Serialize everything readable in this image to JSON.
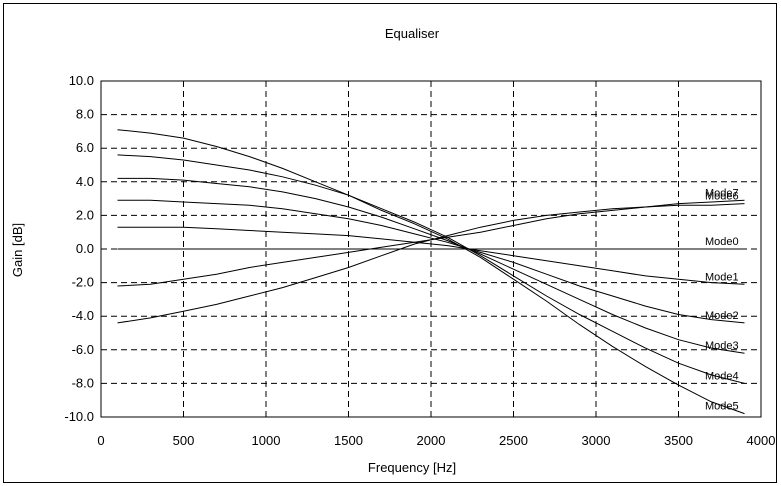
{
  "chart_data": {
    "type": "line",
    "title": "Equaliser",
    "xlabel": "Frequency [Hz]",
    "ylabel": "Gain [dB]",
    "xlim": [
      0,
      4000
    ],
    "ylim": [
      -10,
      10
    ],
    "xticks": [
      "0",
      "500",
      "1000",
      "1500",
      "2000",
      "2500",
      "3000",
      "3500",
      "4000"
    ],
    "yticks": [
      "10.0",
      "8.0",
      "6.0",
      "4.0",
      "2.0",
      "0.0",
      "-2.0",
      "-4.0",
      "-6.0",
      "-8.0",
      "-10.0"
    ],
    "grid": true,
    "x": [
      100,
      300,
      500,
      700,
      900,
      1100,
      1300,
      1500,
      1700,
      1900,
      2100,
      2300,
      2500,
      2700,
      2900,
      3100,
      3300,
      3500,
      3700,
      3900
    ],
    "series": [
      {
        "name": "Mode0",
        "values": [
          0.0,
          0.0,
          0.0,
          0.0,
          0.0,
          0.0,
          0.0,
          0.0,
          0.0,
          0.0,
          0.0,
          0.0,
          0.0,
          0.0,
          0.0,
          0.0,
          0.0,
          0.0,
          0.0,
          0.0
        ]
      },
      {
        "name": "Mode1",
        "values": [
          1.3,
          1.3,
          1.3,
          1.2,
          1.1,
          1.0,
          0.9,
          0.8,
          0.6,
          0.4,
          0.2,
          -0.1,
          -0.4,
          -0.7,
          -1.0,
          -1.3,
          -1.6,
          -1.8,
          -2.0,
          -2.1
        ]
      },
      {
        "name": "Mode2",
        "values": [
          2.9,
          2.9,
          2.8,
          2.7,
          2.6,
          2.4,
          2.1,
          1.8,
          1.4,
          0.9,
          0.4,
          -0.2,
          -0.8,
          -1.5,
          -2.2,
          -2.8,
          -3.4,
          -3.9,
          -4.2,
          -4.4
        ]
      },
      {
        "name": "Mode3",
        "values": [
          4.2,
          4.2,
          4.1,
          3.9,
          3.7,
          3.4,
          3.0,
          2.5,
          1.9,
          1.2,
          0.5,
          -0.3,
          -1.2,
          -2.1,
          -3.0,
          -3.9,
          -4.7,
          -5.4,
          -5.9,
          -6.2
        ]
      },
      {
        "name": "Mode4",
        "values": [
          5.6,
          5.5,
          5.3,
          5.0,
          4.7,
          4.3,
          3.8,
          3.2,
          2.4,
          1.6,
          0.7,
          -0.4,
          -1.6,
          -2.8,
          -3.9,
          -4.9,
          -5.9,
          -6.8,
          -7.5,
          -8.0
        ]
      },
      {
        "name": "Mode5",
        "values": [
          7.1,
          6.9,
          6.6,
          6.1,
          5.5,
          4.8,
          4.0,
          3.2,
          2.3,
          1.5,
          0.6,
          -0.5,
          -1.8,
          -3.1,
          -4.5,
          -5.8,
          -7.0,
          -8.1,
          -9.1,
          -9.8
        ]
      },
      {
        "name": "Mode6",
        "values": [
          -4.4,
          -4.1,
          -3.7,
          -3.3,
          -2.8,
          -2.3,
          -1.7,
          -1.1,
          -0.4,
          0.3,
          0.8,
          1.3,
          1.7,
          2.0,
          2.2,
          2.4,
          2.5,
          2.6,
          2.6,
          2.7
        ]
      },
      {
        "name": "Mode7",
        "values": [
          -2.2,
          -2.1,
          -1.8,
          -1.5,
          -1.1,
          -0.8,
          -0.5,
          -0.2,
          0.1,
          0.4,
          0.7,
          1.0,
          1.4,
          1.8,
          2.1,
          2.3,
          2.5,
          2.7,
          2.8,
          2.9
        ]
      }
    ]
  }
}
